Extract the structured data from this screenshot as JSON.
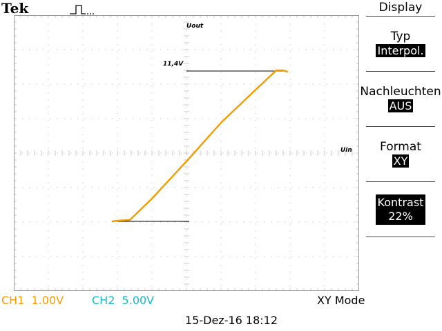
{
  "header": {
    "brand": "Tek",
    "trigger_icon": "pulse-trigger-icon"
  },
  "screen": {
    "annotations": {
      "y_axis_label": "Uout",
      "x_axis_label": "Uin",
      "level_label": "11,4V"
    },
    "trace_color": "#f29c00",
    "grid_color": "#c8c8c8"
  },
  "menu": {
    "title": "Display",
    "items": [
      {
        "label": "Typ",
        "value": "Interpol."
      },
      {
        "label": "Nachleuchten",
        "value": "AUS"
      },
      {
        "label": "Format",
        "value": "XY"
      },
      {
        "label": "Kontrast",
        "value": "22%"
      }
    ]
  },
  "status": {
    "ch1": "CH1  1.00V",
    "ch2": "CH2  5.00V",
    "mode": "XY Mode",
    "datetime": "15-Dez-16 18:12"
  }
}
